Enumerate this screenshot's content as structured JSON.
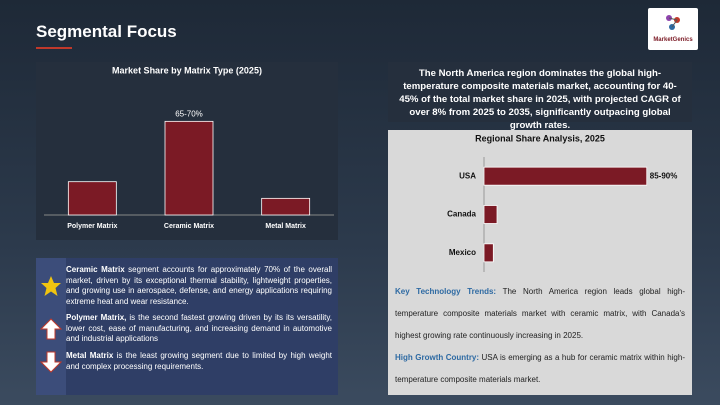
{
  "header": {
    "title": "Segmental Focus",
    "logo": "MarketGenics"
  },
  "summary": "The North America region dominates the global high-temperature composite materials market, accounting for 40-45% of the total market share in 2025, with projected CAGR of over 8% from 2025 to 2035, significantly outpacing global growth rates.",
  "chart_data": [
    {
      "type": "bar",
      "title": "Market Share by Matrix Type (2025)",
      "categories": [
        "Polymer Matrix",
        "Ceramic Matrix",
        "Metal Matrix"
      ],
      "values": [
        24,
        67.5,
        12
      ],
      "value_labels": [
        null,
        "65-70%",
        null
      ],
      "color": "#7b1a25",
      "ylim": [
        0,
        80
      ]
    },
    {
      "type": "barh",
      "title": "Regional Share Analysis, 2025",
      "categories": [
        "USA",
        "Canada",
        "Mexico"
      ],
      "values": [
        87.5,
        7,
        5
      ],
      "value_labels": [
        "85-90%",
        null,
        null
      ],
      "color": "#7b1a25",
      "xlim": [
        0,
        100
      ]
    }
  ],
  "bullets": [
    {
      "lead": "Ceramic Matrix",
      "text": " segment accounts for approximately 70% of the overall market, driven by its exceptional thermal stability, lightweight properties, and growing use in aerospace, defense, and energy applications requiring extreme heat and wear resistance."
    },
    {
      "lead": "Polymer Matrix,",
      "text": " is the second fastest growing driven by its its versatility, lower cost, ease of manufacturing, and increasing demand in automotive and industrial applications"
    },
    {
      "lead": "Metal Matrix",
      "text": " is the least growing segment due to limited by high weight and complex processing requirements."
    }
  ],
  "insights": [
    {
      "lead": "Key Technology Trends:",
      "text": " The North America region leads global high-temperature composite materials market with ceramic matrix, with Canada's highest growing rate continuously increasing in 2025."
    },
    {
      "lead": "High Growth Country:",
      "text": " USA is emerging as a hub for ceramic matrix within high-temperature composite materials market."
    }
  ]
}
